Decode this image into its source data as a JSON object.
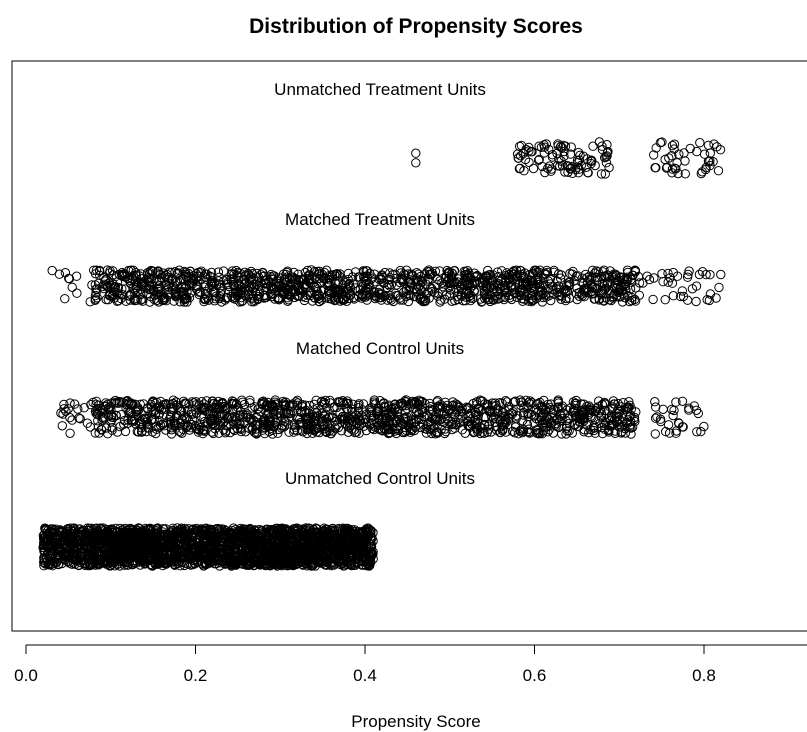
{
  "chart_data": {
    "type": "scatter",
    "title": "Distribution of Propensity Scores",
    "xlabel": "Propensity Score",
    "ylabel": "",
    "xlim": [
      0.0,
      0.92
    ],
    "x_ticks": [
      "0.0",
      "0.2",
      "0.4",
      "0.6",
      "0.8"
    ],
    "x_tick_values": [
      0.0,
      0.2,
      0.4,
      0.6,
      0.8
    ],
    "grid": false,
    "legend": "none",
    "marker": "open-circle",
    "groups": [
      {
        "name": "Unmatched Treatment Units",
        "n_points": 140,
        "clusters": [
          {
            "min": 0.46,
            "max": 0.47,
            "count": 2
          },
          {
            "min": 0.58,
            "max": 0.69,
            "count": 95
          },
          {
            "min": 0.74,
            "max": 0.82,
            "count": 43
          }
        ]
      },
      {
        "name": "Matched Treatment Units",
        "n_points": 1300,
        "clusters": [
          {
            "min": 0.03,
            "max": 0.08,
            "count": 12
          },
          {
            "min": 0.08,
            "max": 0.72,
            "count": 1250
          },
          {
            "min": 0.72,
            "max": 0.82,
            "count": 38
          }
        ]
      },
      {
        "name": "Matched Control Units",
        "n_points": 1300,
        "clusters": [
          {
            "min": 0.04,
            "max": 0.08,
            "count": 20
          },
          {
            "min": 0.08,
            "max": 0.72,
            "count": 1250
          },
          {
            "min": 0.74,
            "max": 0.8,
            "count": 30
          }
        ]
      },
      {
        "name": "Unmatched Control Units",
        "n_points": 2600,
        "clusters": [
          {
            "min": 0.02,
            "max": 0.41,
            "count": 2600
          }
        ]
      }
    ]
  }
}
